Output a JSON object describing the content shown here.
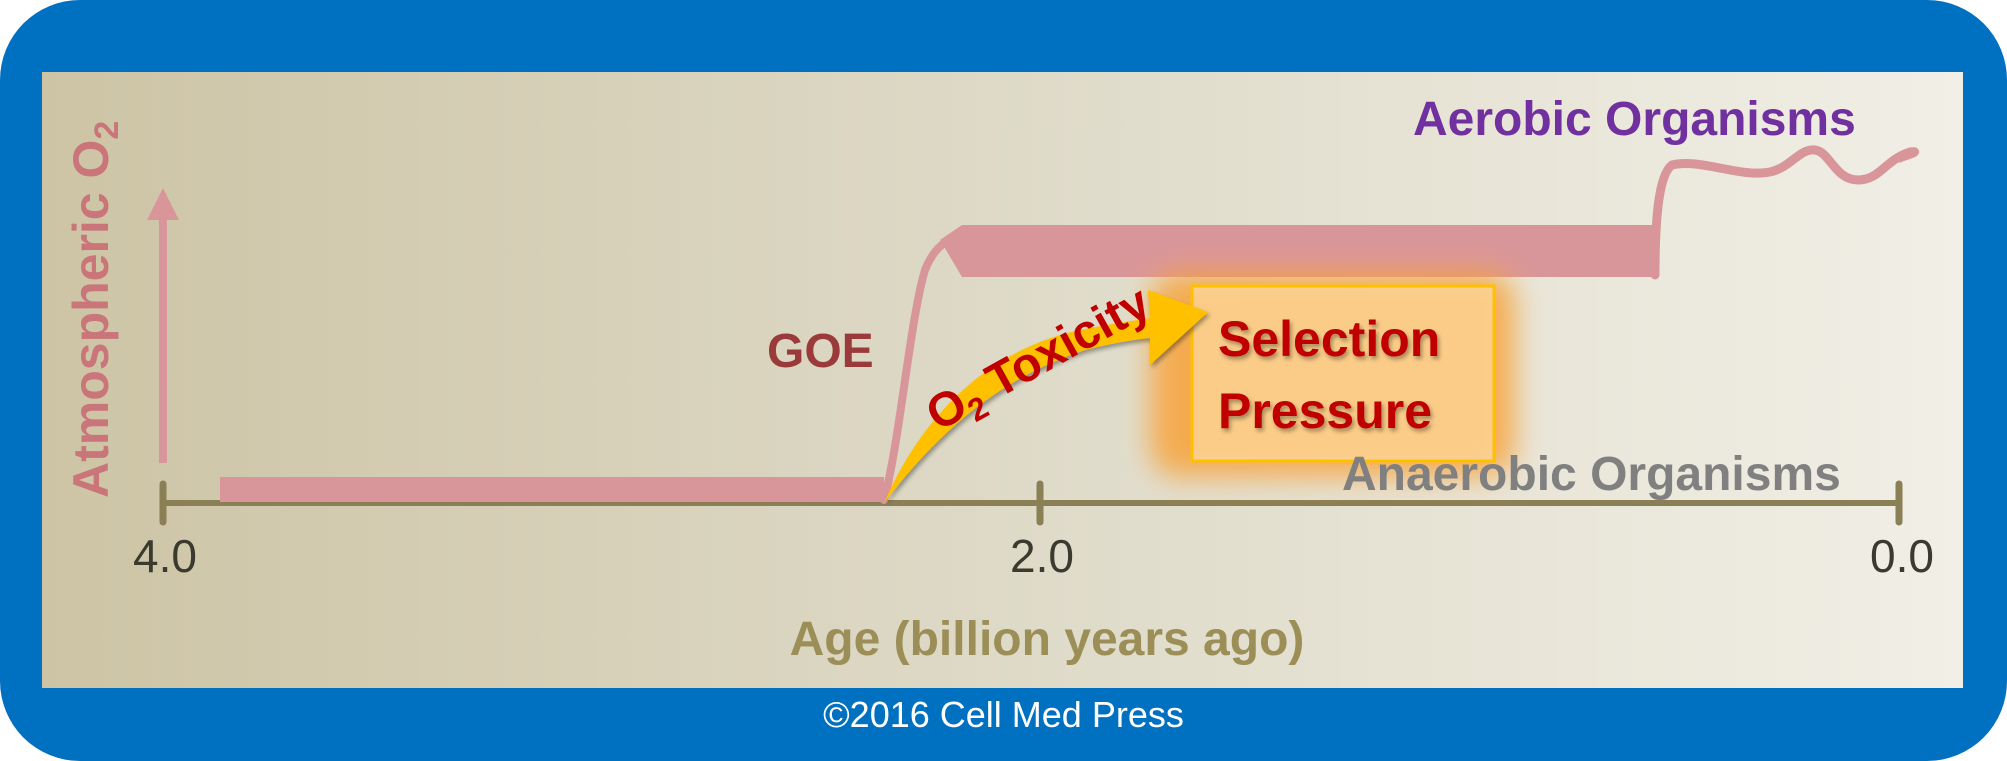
{
  "diagram": {
    "y_axis_label": "Atmospheric O",
    "y_axis_label_subscript": "2",
    "x_axis_label": "Age (billion years ago)",
    "x_ticks": [
      "4.0",
      "2.0",
      "0.0"
    ],
    "goe_label": "GOE",
    "aerobic_label": "Aerobic Organisms",
    "anaerobic_label": "Anaerobic Organisms",
    "toxicity_o": "O",
    "toxicity_subscript": "2",
    "toxicity_word": " Toxicity",
    "selection_line1": "Selection",
    "selection_line2": "Pressure"
  },
  "footer": {
    "copyright": "©2016 Cell Med Press"
  },
  "colors": {
    "frame_blue": "#0070C0",
    "o2_curve_pink": "#D9969A",
    "axis_olive": "#8A7F55",
    "goe_red": "#9B3A3A",
    "aerobic_purple": "#7030A0",
    "anaerobic_gray": "#808080",
    "arrow_gold": "#FFC000",
    "text_red": "#C00000"
  }
}
